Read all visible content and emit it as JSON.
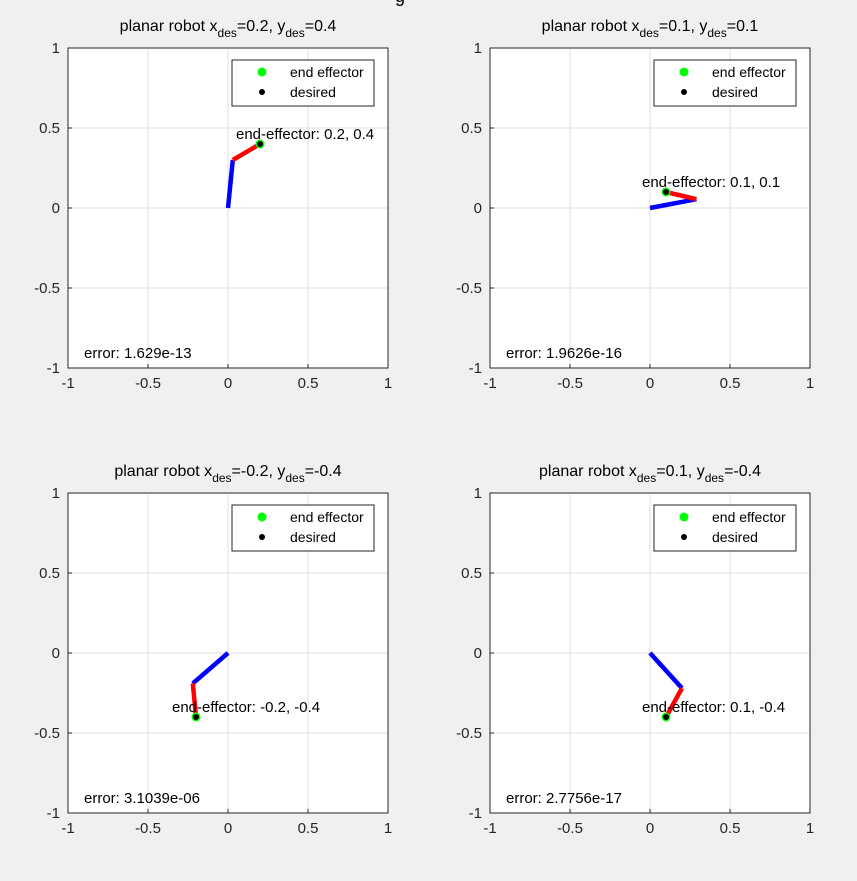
{
  "figure_title_fragment": "g",
  "chart_data": [
    {
      "type": "line",
      "title_prefix": "planar robot x",
      "title_sub": "des",
      "title_mid": "=0.2, y",
      "title_sub2": "des",
      "title_suffix": "=0.4",
      "xlim": [
        -1,
        1
      ],
      "ylim": [
        -1,
        1
      ],
      "xticks": [
        -1,
        -0.5,
        0,
        0.5,
        1
      ],
      "yticks": [
        -1,
        -0.5,
        0,
        0.5,
        1
      ],
      "xtick_labels": [
        "-1",
        "-0.5",
        "0",
        "0.5",
        "1"
      ],
      "ytick_labels": [
        "-1",
        "-0.5",
        "0",
        "0.5",
        "1"
      ],
      "grid": true,
      "series": [
        {
          "name": "link1",
          "color": "#0000ff",
          "x": [
            0,
            0.03
          ],
          "y": [
            0,
            0.3
          ]
        },
        {
          "name": "link2",
          "color": "#ff0000",
          "x": [
            0.03,
            0.2
          ],
          "y": [
            0.3,
            0.4
          ]
        }
      ],
      "end_effector": {
        "x": 0.2,
        "y": 0.4
      },
      "desired": {
        "x": 0.2,
        "y": 0.4
      },
      "annotation": {
        "text": "end-effector: 0.2, 0.4",
        "x": 0.05,
        "y": 0.47
      },
      "error_text": "error: 1.629e-13",
      "legend": {
        "position": "top-right",
        "entries": [
          "end effector",
          "desired"
        ]
      }
    },
    {
      "type": "line",
      "title_prefix": "planar robot x",
      "title_sub": "des",
      "title_mid": "=0.1, y",
      "title_sub2": "des",
      "title_suffix": "=0.1",
      "xlim": [
        -1,
        1
      ],
      "ylim": [
        -1,
        1
      ],
      "xticks": [
        -1,
        -0.5,
        0,
        0.5,
        1
      ],
      "yticks": [
        -1,
        -0.5,
        0,
        0.5,
        1
      ],
      "xtick_labels": [
        "-1",
        "-0.5",
        "0",
        "0.5",
        "1"
      ],
      "ytick_labels": [
        "-1",
        "-0.5",
        "0",
        "0.5",
        "1"
      ],
      "grid": true,
      "series": [
        {
          "name": "link1",
          "color": "#0000ff",
          "x": [
            0,
            0.29
          ],
          "y": [
            0,
            0.055
          ]
        },
        {
          "name": "link2",
          "color": "#ff0000",
          "x": [
            0.29,
            0.1
          ],
          "y": [
            0.055,
            0.1
          ]
        }
      ],
      "end_effector": {
        "x": 0.1,
        "y": 0.1
      },
      "desired": {
        "x": 0.1,
        "y": 0.1
      },
      "annotation": {
        "text": "end-effector: 0.1, 0.1",
        "x": -0.05,
        "y": 0.17
      },
      "error_text": "error: 1.9626e-16",
      "legend": {
        "position": "top-right",
        "entries": [
          "end effector",
          "desired"
        ]
      }
    },
    {
      "type": "line",
      "title_prefix": "planar robot x",
      "title_sub": "des",
      "title_mid": "=-0.2, y",
      "title_sub2": "des",
      "title_suffix": "=-0.4",
      "xlim": [
        -1,
        1
      ],
      "ylim": [
        -1,
        1
      ],
      "xticks": [
        -1,
        -0.5,
        0,
        0.5,
        1
      ],
      "yticks": [
        -1,
        -0.5,
        0,
        0.5,
        1
      ],
      "xtick_labels": [
        "-1",
        "-0.5",
        "0",
        "0.5",
        "1"
      ],
      "ytick_labels": [
        "-1",
        "-0.5",
        "0",
        "0.5",
        "1"
      ],
      "grid": true,
      "series": [
        {
          "name": "link1",
          "color": "#0000ff",
          "x": [
            0,
            -0.22
          ],
          "y": [
            0,
            -0.19
          ]
        },
        {
          "name": "link2",
          "color": "#ff0000",
          "x": [
            -0.22,
            -0.2
          ],
          "y": [
            -0.19,
            -0.4
          ]
        }
      ],
      "end_effector": {
        "x": -0.2,
        "y": -0.4
      },
      "desired": {
        "x": -0.2,
        "y": -0.4
      },
      "annotation": {
        "text": "end-effector: -0.2, -0.4",
        "x": -0.35,
        "y": -0.33
      },
      "error_text": "error: 3.1039e-06",
      "legend": {
        "position": "top-right",
        "entries": [
          "end effector",
          "desired"
        ]
      }
    },
    {
      "type": "line",
      "title_prefix": "planar robot x",
      "title_sub": "des",
      "title_mid": "=0.1, y",
      "title_sub2": "des",
      "title_suffix": "=-0.4",
      "xlim": [
        -1,
        1
      ],
      "ylim": [
        -1,
        1
      ],
      "xticks": [
        -1,
        -0.5,
        0,
        0.5,
        1
      ],
      "yticks": [
        -1,
        -0.5,
        0,
        0.5,
        1
      ],
      "xtick_labels": [
        "-1",
        "-0.5",
        "0",
        "0.5",
        "1"
      ],
      "ytick_labels": [
        "-1",
        "-0.5",
        "0",
        "0.5",
        "1"
      ],
      "grid": true,
      "series": [
        {
          "name": "link1",
          "color": "#0000ff",
          "x": [
            0,
            0.2
          ],
          "y": [
            0,
            -0.22
          ]
        },
        {
          "name": "link2",
          "color": "#ff0000",
          "x": [
            0.2,
            0.1
          ],
          "y": [
            -0.22,
            -0.4
          ]
        }
      ],
      "end_effector": {
        "x": 0.1,
        "y": -0.4
      },
      "desired": {
        "x": 0.1,
        "y": -0.4
      },
      "annotation": {
        "text": "end-effector: 0.1, -0.4",
        "x": -0.05,
        "y": -0.33
      },
      "error_text": "error: 2.7756e-17",
      "legend": {
        "position": "top-right",
        "entries": [
          "end effector",
          "desired"
        ]
      }
    }
  ],
  "colors": {
    "link1": "#0000ff",
    "link2": "#ff0000",
    "end_effector_marker": "#00ff00",
    "desired_marker": "#000000"
  }
}
